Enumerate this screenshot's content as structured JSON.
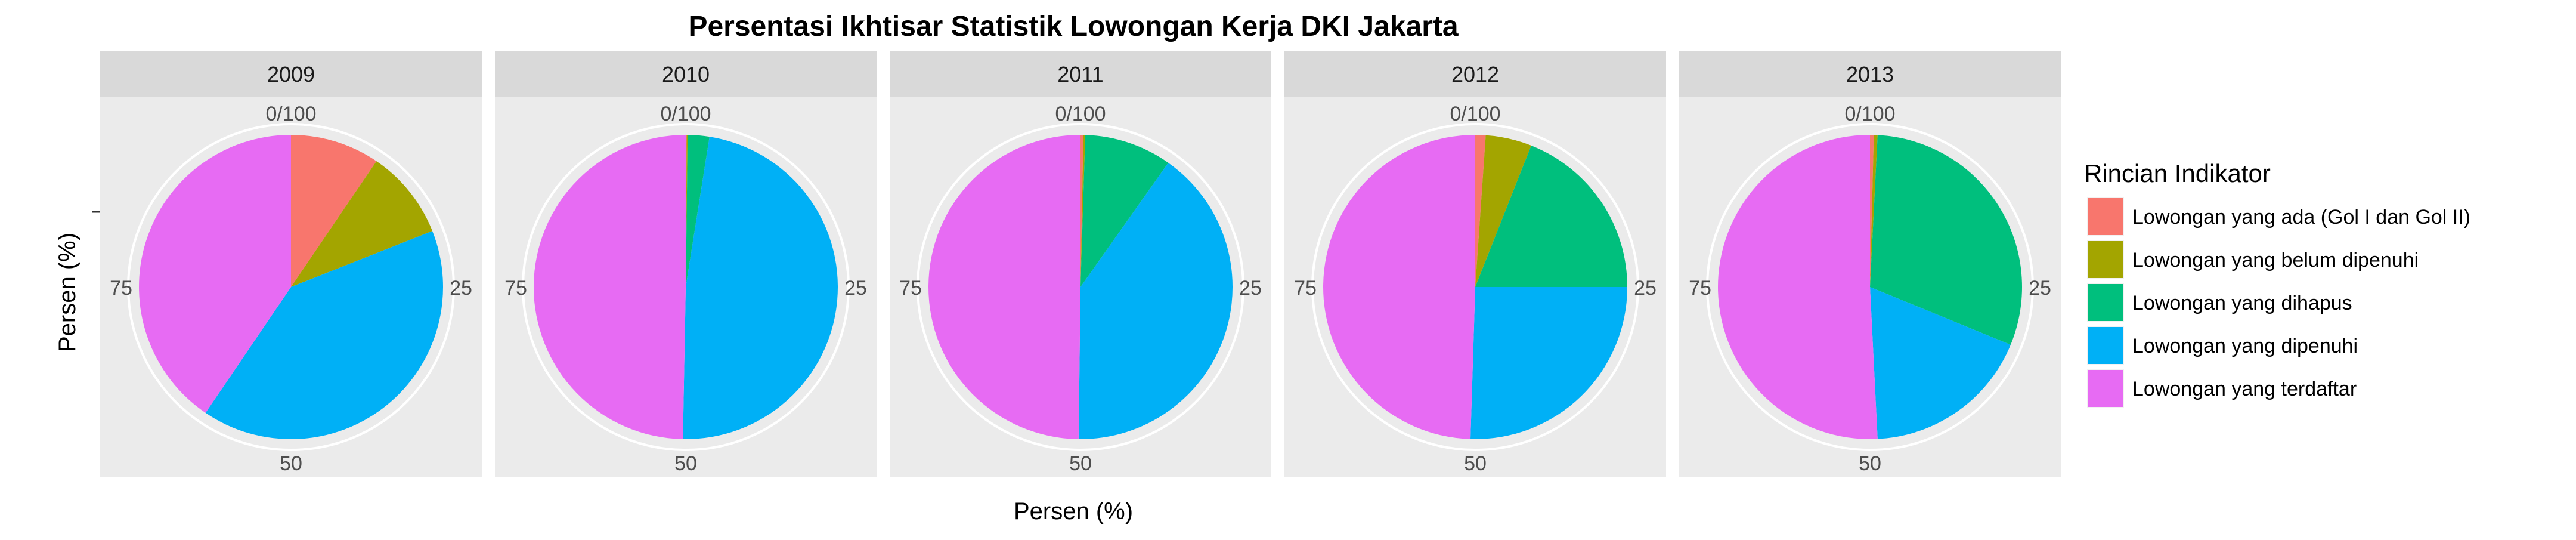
{
  "chart_data": {
    "type": "pie",
    "title": "Persentasi Ikhtisar Statistik Lowongan Kerja DKI Jakarta",
    "xlabel": "Persen (%)",
    "ylabel": "Persen (%)",
    "grid": true,
    "legend_position": "right",
    "legend_title": "Rincian Indikator",
    "theta_ticks": [
      "0/100",
      "25",
      "50",
      "75"
    ],
    "categories": [
      "Lowongan yang ada (Gol I dan Gol II)",
      "Lowongan yang belum dipenuhi",
      "Lowongan yang dihapus",
      "Lowongan yang dipenuhi",
      "Lowongan yang terdaftar"
    ],
    "colors": {
      "Lowongan yang ada (Gol I dan Gol II)": "#F8766D",
      "Lowongan yang belum dipenuhi": "#A3A500",
      "Lowongan yang dihapus": "#00BF7D",
      "Lowongan yang dipenuhi": "#00B0F6",
      "Lowongan yang terdaftar": "#E76BF3"
    },
    "panels": [
      {
        "year": "2009",
        "values": [
          9.5,
          9.5,
          0.0,
          40.5,
          40.5
        ]
      },
      {
        "year": "2010",
        "values": [
          0.1,
          0.1,
          2.3,
          47.8,
          49.7
        ]
      },
      {
        "year": "2011",
        "values": [
          0.3,
          0.2,
          9.3,
          40.4,
          49.8
        ]
      },
      {
        "year": "2012",
        "values": [
          1.1,
          4.9,
          19.0,
          25.5,
          49.5
        ]
      },
      {
        "year": "2013",
        "values": [
          0.4,
          0.4,
          30.4,
          18.0,
          50.8
        ]
      }
    ]
  }
}
